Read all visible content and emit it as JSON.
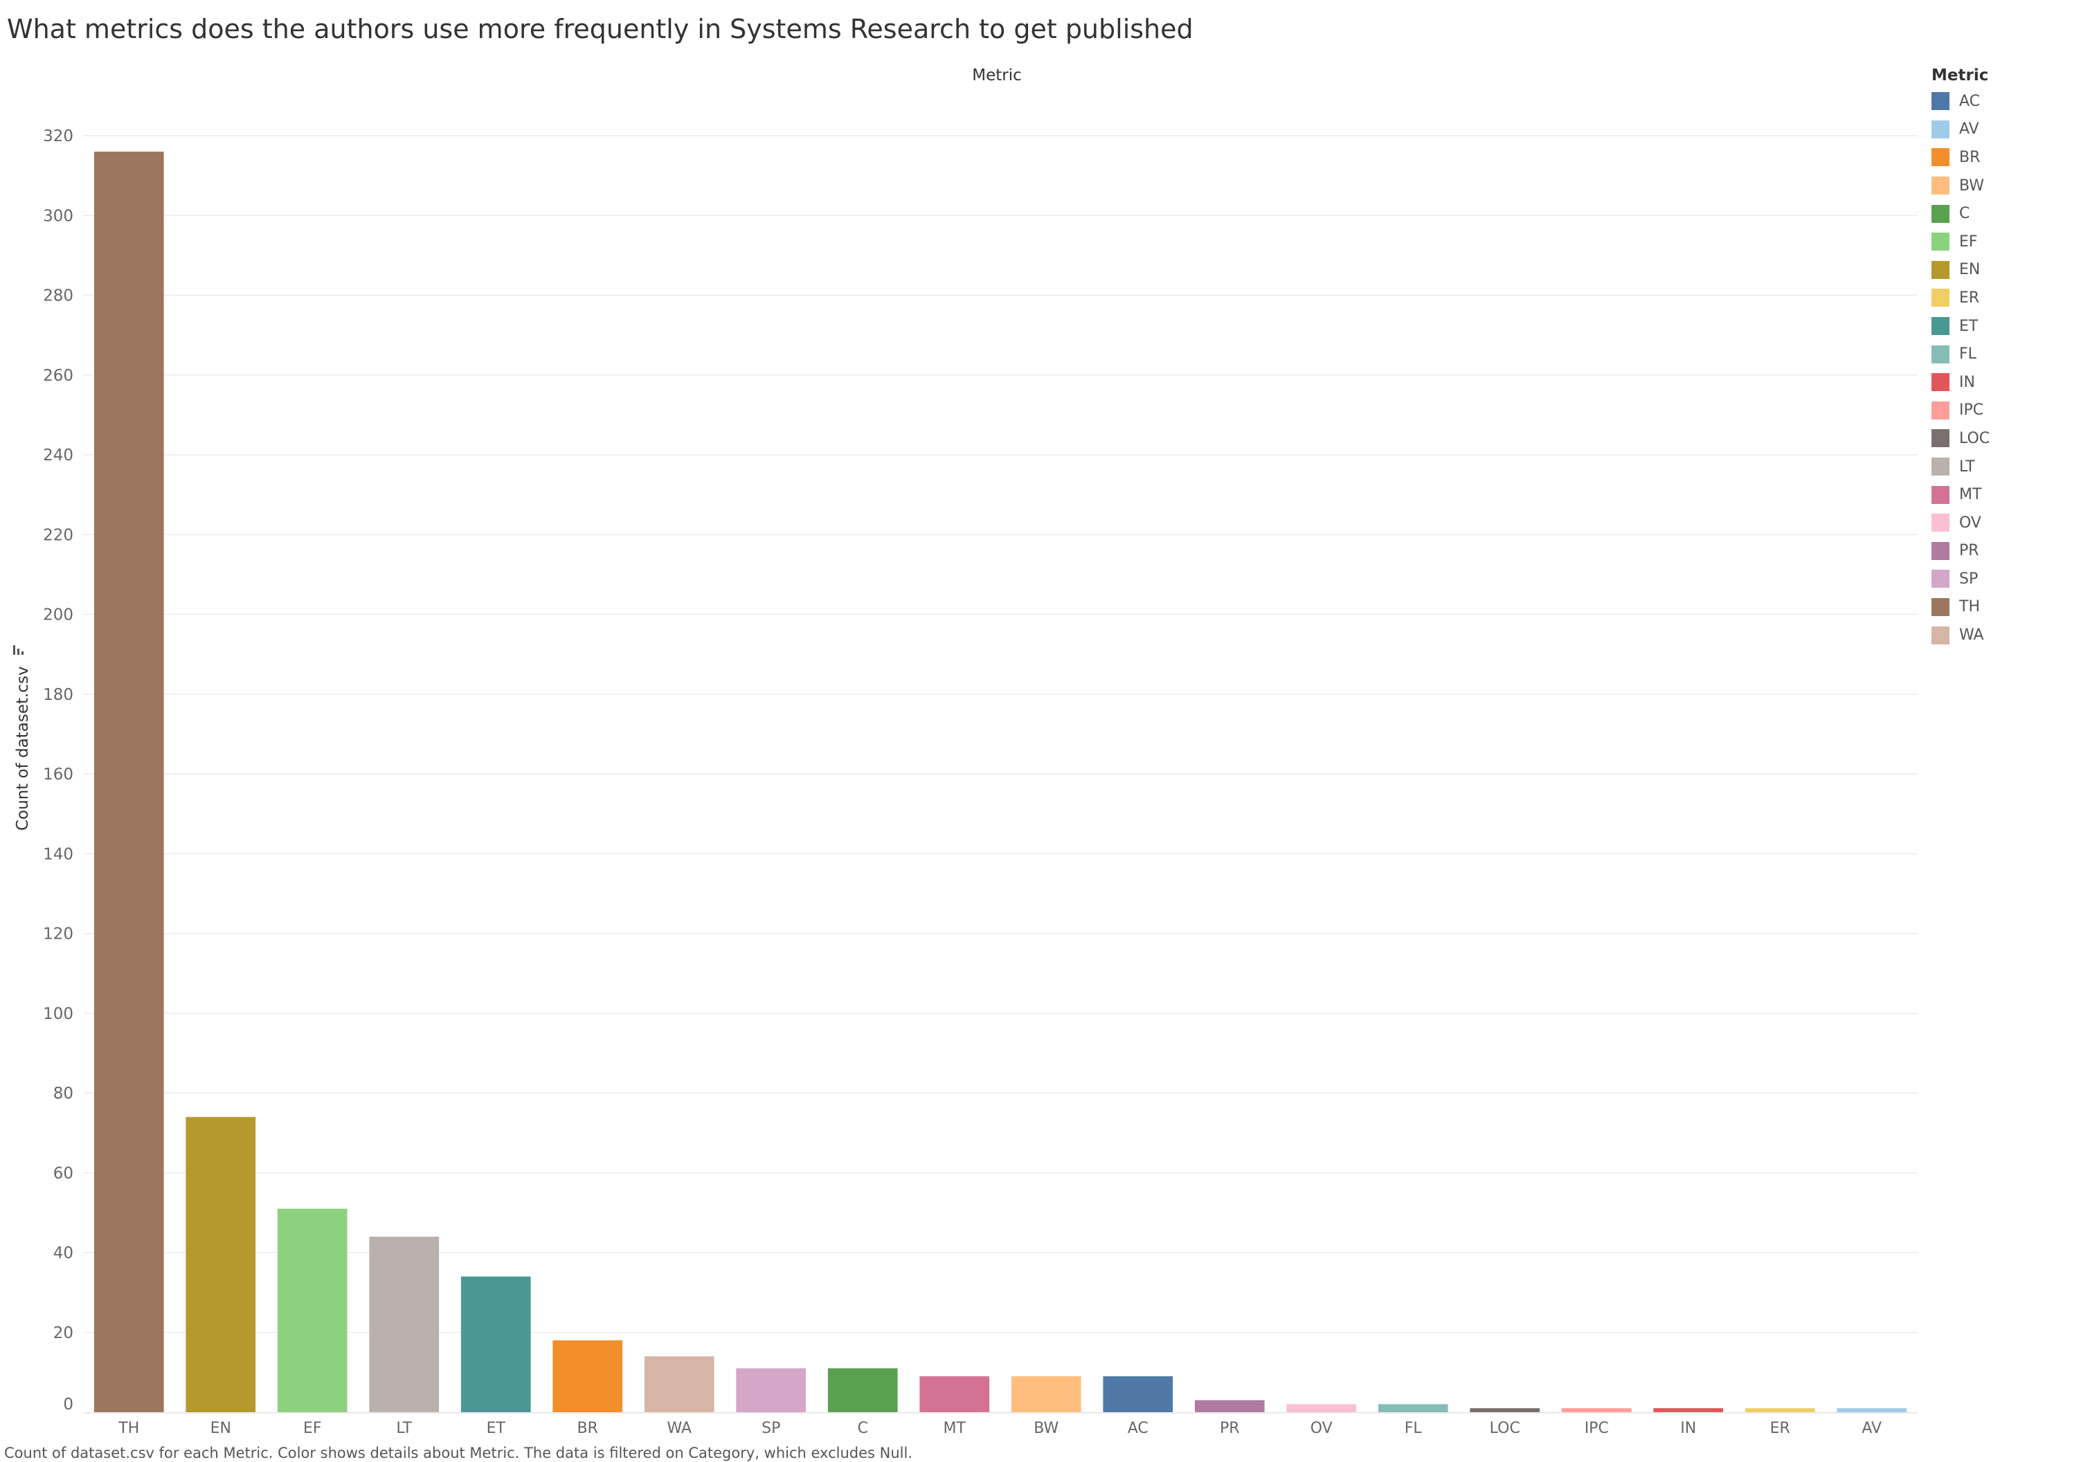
{
  "page_title": "What metrics does the authors use more frequently in Systems Research to get published",
  "caption": "Count of dataset.csv for each Metric.  Color shows details about Metric. The data is filtered on Category, which excludes Null.",
  "legend": {
    "title": "Metric",
    "items": [
      {
        "label": "AC",
        "color": "#4e79a7"
      },
      {
        "label": "AV",
        "color": "#a0cbe8"
      },
      {
        "label": "BR",
        "color": "#f28e2b"
      },
      {
        "label": "BW",
        "color": "#ffbe7d"
      },
      {
        "label": "C",
        "color": "#59a14f"
      },
      {
        "label": "EF",
        "color": "#8cd17d"
      },
      {
        "label": "EN",
        "color": "#b6992d"
      },
      {
        "label": "ER",
        "color": "#f1ce63"
      },
      {
        "label": "ET",
        "color": "#499894"
      },
      {
        "label": "FL",
        "color": "#86bcb6"
      },
      {
        "label": "IN",
        "color": "#e15759"
      },
      {
        "label": "IPC",
        "color": "#ff9d9a"
      },
      {
        "label": "LOC",
        "color": "#79706e"
      },
      {
        "label": "LT",
        "color": "#bab0ac"
      },
      {
        "label": "MT",
        "color": "#d37295"
      },
      {
        "label": "OV",
        "color": "#fabfd2"
      },
      {
        "label": "PR",
        "color": "#b07aa1"
      },
      {
        "label": "SP",
        "color": "#d4a6c8"
      },
      {
        "label": "TH",
        "color": "#9d7660"
      },
      {
        "label": "WA",
        "color": "#d7b5a6"
      }
    ]
  },
  "chart_data": {
    "type": "bar",
    "title": "What metrics does the authors use more frequently in Systems Research to get published",
    "column_header": "Metric",
    "ylabel": "Count of dataset.csv",
    "xlabel": "",
    "categories": [
      "TH",
      "EN",
      "EF",
      "LT",
      "ET",
      "BR",
      "WA",
      "SP",
      "C",
      "MT",
      "BW",
      "AC",
      "PR",
      "OV",
      "FL",
      "LOC",
      "IPC",
      "IN",
      "ER",
      "AV"
    ],
    "values": [
      316,
      74,
      51,
      44,
      34,
      18,
      14,
      11,
      11,
      9,
      9,
      9,
      3,
      2,
      2,
      1,
      1,
      1,
      1,
      1
    ],
    "colors": [
      "#9d7660",
      "#b6992d",
      "#8cd17d",
      "#bab0ac",
      "#499894",
      "#f28e2b",
      "#d7b5a6",
      "#d4a6c8",
      "#59a14f",
      "#d37295",
      "#ffbe7d",
      "#4e79a7",
      "#b07aa1",
      "#fabfd2",
      "#86bcb6",
      "#79706e",
      "#ff9d9a",
      "#e15759",
      "#f1ce63",
      "#a0cbe8"
    ],
    "yticks": [
      0,
      20,
      40,
      60,
      80,
      100,
      120,
      140,
      160,
      180,
      200,
      220,
      240,
      260,
      280,
      300,
      320
    ],
    "ylim": [
      0,
      330
    ],
    "grid": true,
    "legend_position": "right"
  }
}
